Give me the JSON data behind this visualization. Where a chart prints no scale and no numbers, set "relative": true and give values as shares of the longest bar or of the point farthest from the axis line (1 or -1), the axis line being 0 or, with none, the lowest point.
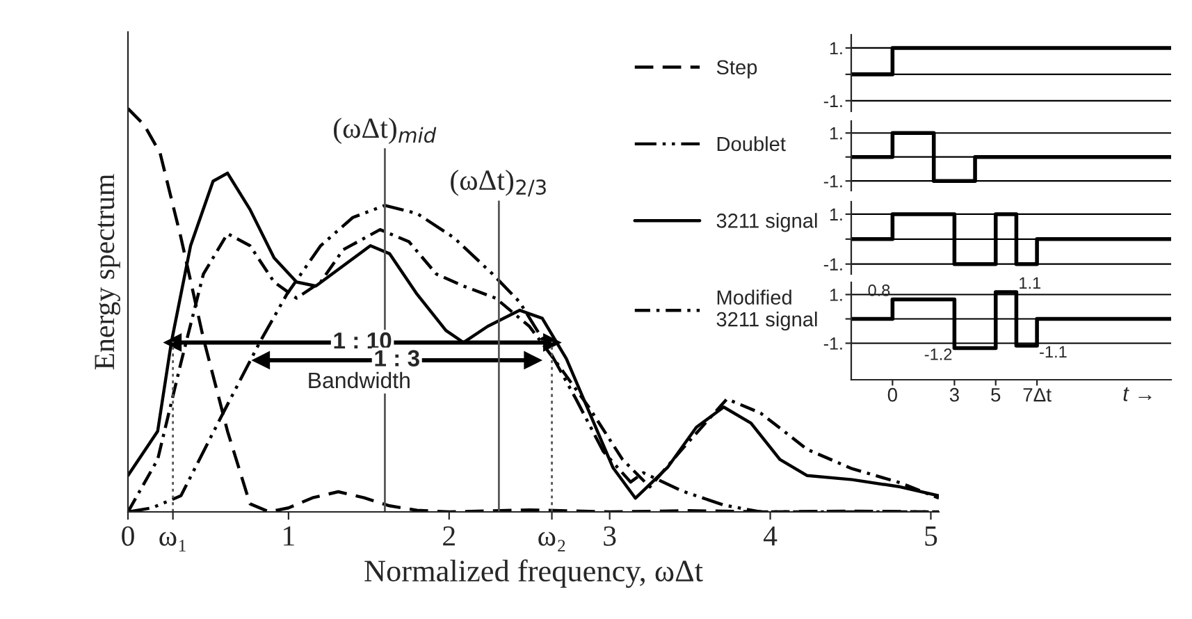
{
  "chart_data": [
    {
      "type": "line",
      "relative": true,
      "xlabel": "Normalized frequency, ωΔt",
      "ylabel": "Energy spectrum",
      "xlim": [
        0,
        5.05
      ],
      "xticks": [
        0,
        {
          "value": 0.28,
          "label": "ω₁"
        },
        1,
        2,
        {
          "value": 2.64,
          "label": "ω₂"
        },
        3,
        4,
        5
      ],
      "legend": "top right",
      "grid": false,
      "series": [
        {
          "name": "Step",
          "color": "#000000",
          "line_style": "dashed",
          "x": [
            0,
            0.1,
            0.2,
            0.33,
            0.47,
            0.62,
            0.76,
            0.88,
            1.0,
            1.15,
            1.31,
            1.47,
            1.63,
            1.8,
            2.0,
            2.5,
            3.0,
            3.5,
            4.0,
            4.5,
            5.05
          ],
          "values": [
            1.0,
            0.96,
            0.89,
            0.68,
            0.43,
            0.2,
            0.02,
            0,
            0.01,
            0.035,
            0.05,
            0.035,
            0.015,
            0.004,
            0,
            0.005,
            0,
            0.003,
            0,
            0.002,
            0
          ]
        },
        {
          "name": "Doublet",
          "color": "#000000",
          "line_style": "dashdotdot",
          "x": [
            0,
            0.15,
            0.33,
            0.56,
            0.82,
            0.99,
            1.2,
            1.4,
            1.6,
            1.8,
            2.03,
            2.27,
            2.44,
            2.61,
            2.79,
            2.96,
            3.13,
            3.21,
            3.45,
            3.71,
            3.94,
            4.5,
            5.05
          ],
          "values": [
            0,
            0.01,
            0.04,
            0.22,
            0.42,
            0.54,
            0.66,
            0.73,
            0.76,
            0.74,
            0.68,
            0.59,
            0.52,
            0.41,
            0.28,
            0.15,
            0.074,
            0.097,
            0.052,
            0.017,
            0,
            0,
            0
          ]
        },
        {
          "name": "3211 signal",
          "color": "#000000",
          "line_style": "solid",
          "x": [
            0,
            0.185,
            0.27,
            0.39,
            0.53,
            0.62,
            0.76,
            0.91,
            1.05,
            1.17,
            1.34,
            1.51,
            1.63,
            1.8,
            1.98,
            2.09,
            2.24,
            2.44,
            2.58,
            2.73,
            2.87,
            3.02,
            3.16,
            3.36,
            3.54,
            3.71,
            3.88,
            4.06,
            4.23,
            4.51,
            4.81,
            5.05
          ],
          "values": [
            0.09,
            0.2,
            0.42,
            0.66,
            0.82,
            0.84,
            0.75,
            0.63,
            0.57,
            0.56,
            0.61,
            0.66,
            0.64,
            0.54,
            0.45,
            0.42,
            0.46,
            0.5,
            0.48,
            0.38,
            0.25,
            0.11,
            0.034,
            0.11,
            0.21,
            0.26,
            0.22,
            0.13,
            0.09,
            0.08,
            0.062,
            0.04
          ]
        },
        {
          "name": "Modified\n3211 signal",
          "color": "#000000",
          "line_style": "dashdot",
          "x": [
            0,
            0.185,
            0.33,
            0.47,
            0.62,
            0.76,
            0.91,
            1.05,
            1.2,
            1.34,
            1.57,
            1.75,
            1.92,
            2.09,
            2.29,
            2.5,
            2.67,
            2.87,
            3.08,
            3.25,
            3.45,
            3.73,
            3.94,
            4.23,
            4.51,
            4.81,
            5.05
          ],
          "values": [
            0,
            0.13,
            0.37,
            0.59,
            0.69,
            0.66,
            0.57,
            0.53,
            0.57,
            0.65,
            0.7,
            0.67,
            0.59,
            0.56,
            0.53,
            0.46,
            0.37,
            0.26,
            0.13,
            0.062,
            0.155,
            0.28,
            0.245,
            0.155,
            0.107,
            0.072,
            0.034
          ]
        },
        {
          "color": "#000000",
          "line_style": "solid",
          "marker": "triangle",
          "x": [
            0.28,
            2.64
          ],
          "values": [
            0.42,
            0.42
          ]
        },
        {
          "color": "#000000",
          "line_style": "solid",
          "marker": "triangle",
          "x": [
            0.83,
            2.52
          ],
          "values": [
            0.376,
            0.376
          ]
        }
      ],
      "ref_lines": [
        {
          "axis": "x",
          "value": 1.6,
          "label": "(ωΔt)$_{mid}$",
          "line_style": "solid"
        },
        {
          "axis": "x",
          "value": 2.31,
          "label": "(ωΔt)$_{2/3}$",
          "line_style": "solid"
        },
        {
          "axis": "x",
          "value": 0.28,
          "line_style": "dotted"
        },
        {
          "axis": "x",
          "value": 2.64,
          "line_style": "dotted"
        }
      ],
      "annotations": [
        {
          "text": "1 : 10",
          "x": 1.46,
          "y": 0.42
        },
        {
          "text": "1 : 3",
          "x": 1.675,
          "y": 0.376
        },
        "Bandwidth"
      ]
    },
    {
      "type": "step",
      "x": [
        -2,
        0,
        13.5
      ],
      "xlim": [
        -2,
        13.5
      ],
      "ylim": [
        -1.4,
        1.5
      ],
      "yticks": [
        {
          "value": 1,
          "label": "1."
        },
        {
          "value": 0,
          "label": null
        },
        {
          "value": -1,
          "label": "-1."
        }
      ],
      "grid": "y",
      "tick_labels": "y",
      "series": [
        {
          "color": "#000000",
          "values": [
            0,
            1,
            1
          ]
        }
      ]
    },
    {
      "type": "step",
      "x": [
        -2,
        0,
        2,
        4,
        13.5
      ],
      "xlim": [
        -2,
        13.5
      ],
      "ylim": [
        -1.4,
        1.5
      ],
      "yticks": [
        {
          "value": 1,
          "label": "1."
        },
        {
          "value": 0,
          "label": null
        },
        {
          "value": -1,
          "label": "-1."
        }
      ],
      "grid": "y",
      "tick_labels": "y",
      "series": [
        {
          "color": "#000000",
          "values": [
            0,
            1,
            -1,
            0,
            0
          ]
        }
      ]
    },
    {
      "type": "step",
      "x": [
        -2,
        0,
        3,
        5,
        6,
        7,
        13.5
      ],
      "xlim": [
        -2,
        13.5
      ],
      "ylim": [
        -1.4,
        1.5
      ],
      "yticks": [
        {
          "value": 1,
          "label": "1."
        },
        {
          "value": 0,
          "label": null
        },
        {
          "value": -1,
          "label": "-1."
        }
      ],
      "grid": "y",
      "tick_labels": "y",
      "series": [
        {
          "color": "#000000",
          "values": [
            0,
            1,
            -1,
            1,
            -1,
            0,
            0
          ]
        }
      ]
    },
    {
      "type": "step",
      "x": [
        -2,
        0,
        3,
        5,
        6,
        7,
        13.5
      ],
      "xlim": [
        -2,
        13.5
      ],
      "ylim": [
        -2.5,
        1.5
      ],
      "yticks": [
        {
          "value": 1,
          "label": "1."
        },
        {
          "value": 0,
          "label": null
        },
        {
          "value": -1,
          "label": "-1."
        }
      ],
      "xticks": [
        0,
        3,
        5,
        {
          "value": 7,
          "label": "7Δt"
        }
      ],
      "grid": "y",
      "series": [
        {
          "color": "#000000",
          "values": [
            0,
            0.8,
            -1.2,
            1.1,
            -1.1,
            0,
            0
          ],
          "value_labels": [
            null,
            "0.8",
            "-1.2",
            "1.1",
            "-1.1",
            null,
            null
          ]
        }
      ],
      "annotations": [
        "t →"
      ]
    }
  ]
}
